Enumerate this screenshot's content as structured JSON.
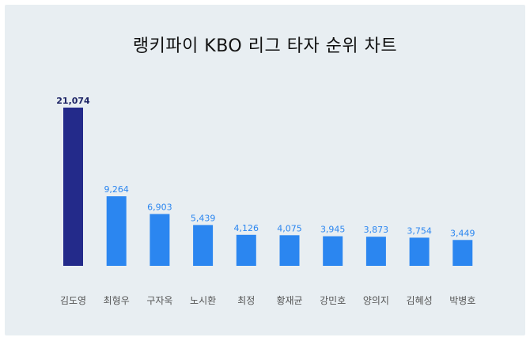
{
  "chart_data": {
    "type": "bar",
    "title": "랭키파이 KBO 리그 타자 순위 차트",
    "categories": [
      "김도영",
      "최형우",
      "구자욱",
      "노시환",
      "최정",
      "황재균",
      "강민호",
      "양의지",
      "김혜성",
      "박병호"
    ],
    "values": [
      21074,
      9264,
      6903,
      5439,
      4126,
      4075,
      3945,
      3873,
      3754,
      3449
    ],
    "value_labels": [
      "21,074",
      "9,264",
      "6,903",
      "5,439",
      "4,126",
      "4,075",
      "3,945",
      "3,873",
      "3,754",
      "3,449"
    ],
    "ylim": [
      0,
      21074
    ],
    "grid": false,
    "legend": "none",
    "colors": {
      "highlight_bar": "#232a8a",
      "bar": "#2b86f0",
      "highlight_label": "#1e2566",
      "label": "#2b86f0",
      "category_label": "#555555",
      "background": "#e8eef2"
    }
  }
}
